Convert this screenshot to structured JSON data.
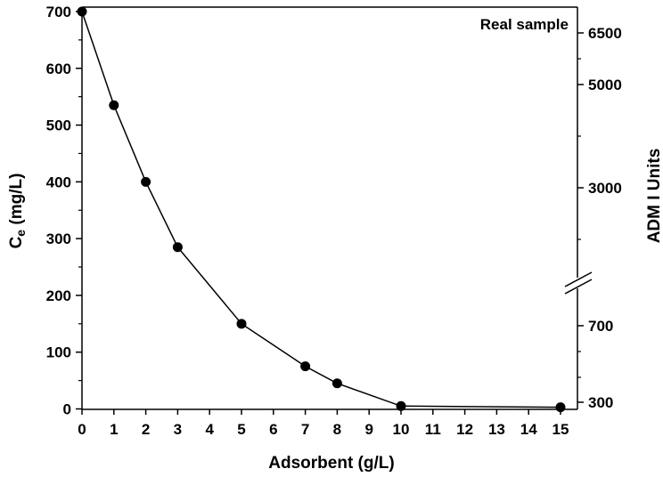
{
  "chart_data": {
    "type": "line",
    "annotation": "Real sample",
    "xlabel": "Adsorbent (g/L)",
    "ylabel_main": "C",
    "ylabel_sub": "e",
    "ylabel_unit": " (mg/L)",
    "y2label": "ADM I Units",
    "xlim": [
      0,
      15.5
    ],
    "ylim": [
      0,
      700
    ],
    "x_ticks": [
      0,
      1,
      2,
      3,
      4,
      5,
      6,
      7,
      8,
      9,
      10,
      11,
      12,
      13,
      14,
      15
    ],
    "y_ticks": [
      0,
      100,
      200,
      300,
      400,
      500,
      600,
      700
    ],
    "y2_tick_labels": [
      "6500",
      "5000",
      "3000",
      "700",
      "300"
    ],
    "y2_broken_axis": true,
    "marker": "filled-circle",
    "series": [
      {
        "x": [
          0,
          1,
          2,
          3,
          5,
          7,
          8,
          10,
          15
        ],
        "y": [
          700,
          535,
          400,
          285,
          150,
          75,
          45,
          5,
          3
        ]
      }
    ],
    "grid": false,
    "legend": "none"
  }
}
